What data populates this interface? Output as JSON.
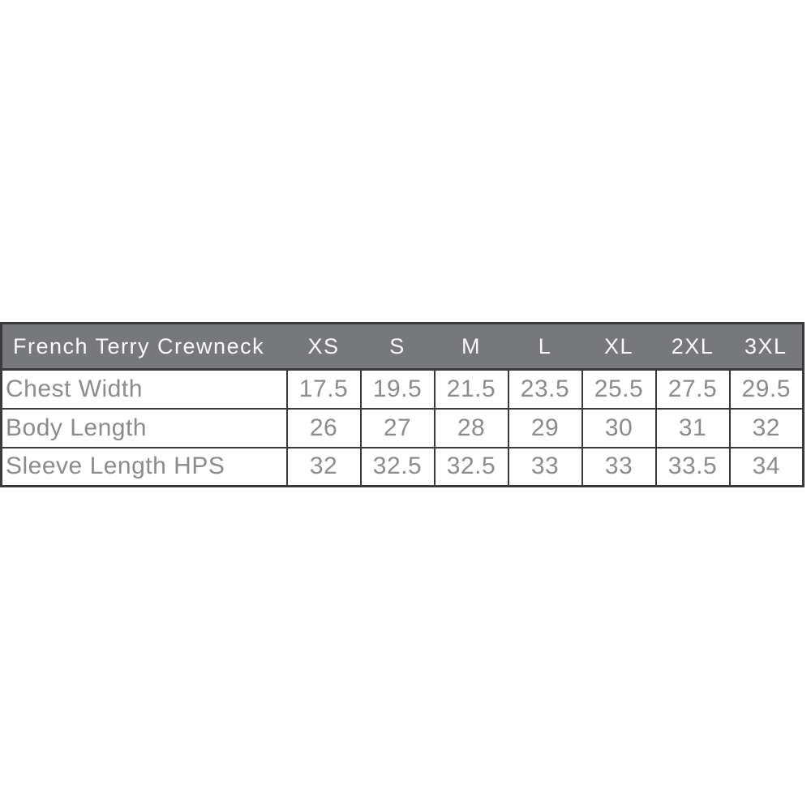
{
  "chart_data": {
    "type": "table",
    "title": "French Terry Crewneck",
    "columns": [
      "XS",
      "S",
      "M",
      "L",
      "XL",
      "2XL",
      "3XL"
    ],
    "rows": [
      {
        "label": "Chest Width",
        "values": [
          "17.5",
          "19.5",
          "21.5",
          "23.5",
          "25.5",
          "27.5",
          "29.5"
        ]
      },
      {
        "label": "Body Length",
        "values": [
          "26",
          "27",
          "28",
          "29",
          "30",
          "31",
          "32"
        ]
      },
      {
        "label": "Sleeve Length HPS",
        "values": [
          "32",
          "32.5",
          "32.5",
          "33",
          "33",
          "33.5",
          "34"
        ]
      }
    ],
    "layout": {
      "legend": "none",
      "grid": "on"
    },
    "colors": {
      "header_background": "#77787B",
      "header_text": "#FAFAFA",
      "body_text": "#8A8B8E",
      "border": "#3A3A3C",
      "body_background": "#FFFFFF",
      "page_background": "#FFFFFF"
    }
  }
}
